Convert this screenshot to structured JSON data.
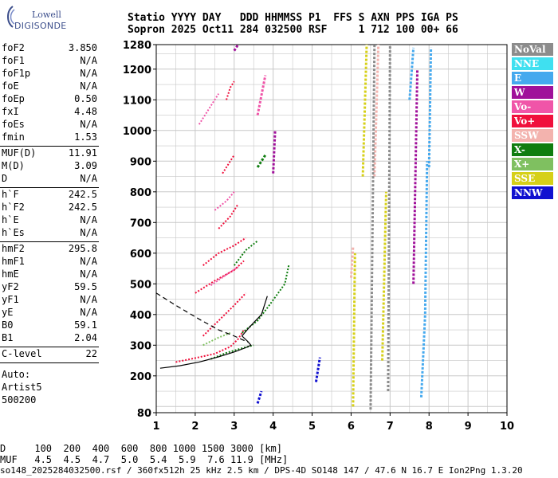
{
  "logo": {
    "line1": "Lowell",
    "line2": "DIGISONDE"
  },
  "header": {
    "line1": "Statio YYYY DAY   DDD HHMMSS P1  FFS S AXN PPS IGA PS",
    "line2": "Sopron 2025 Oct11 284 032500 RSF     1 712 100 00+ 66"
  },
  "params": [
    {
      "group": [
        {
          "label": "foF2",
          "value": "3.850"
        },
        {
          "label": "foF1",
          "value": "N/A"
        },
        {
          "label": "foF1p",
          "value": "N/A"
        },
        {
          "label": "foE",
          "value": "N/A"
        },
        {
          "label": "foEp",
          "value": "0.50"
        },
        {
          "label": "fxI",
          "value": "4.48"
        },
        {
          "label": "foEs",
          "value": "N/A"
        },
        {
          "label": "fmin",
          "value": "1.53"
        }
      ]
    },
    {
      "group": [
        {
          "label": "MUF(D)",
          "value": "11.91"
        },
        {
          "label": "M(D)",
          "value": "3.09"
        },
        {
          "label": "D",
          "value": "N/A"
        }
      ]
    },
    {
      "group": [
        {
          "label": "h`F",
          "value": "242.5"
        },
        {
          "label": "h`F2",
          "value": "242.5"
        },
        {
          "label": "h`E",
          "value": "N/A"
        },
        {
          "label": "h`Es",
          "value": "N/A"
        }
      ]
    },
    {
      "group": [
        {
          "label": "hmF2",
          "value": "295.8"
        },
        {
          "label": "hmF1",
          "value": "N/A"
        },
        {
          "label": "hmE",
          "value": "N/A"
        },
        {
          "label": "yF2",
          "value": "59.5"
        },
        {
          "label": "yF1",
          "value": "N/A"
        },
        {
          "label": "yE",
          "value": "N/A"
        },
        {
          "label": "B0",
          "value": "59.1"
        },
        {
          "label": "B1",
          "value": "2.04"
        }
      ]
    },
    {
      "group": [
        {
          "label": "C-level",
          "value": "22"
        }
      ]
    }
  ],
  "status": [
    "Auto:",
    "Artist5",
    "500200"
  ],
  "legend": [
    {
      "label": "NoVal",
      "color": "#8c8c8c"
    },
    {
      "label": "NNE",
      "color": "#3fe0f0"
    },
    {
      "label": "E",
      "color": "#45a9ee"
    },
    {
      "label": "W",
      "color": "#a0109a"
    },
    {
      "label": "Vo-",
      "color": "#f055a8"
    },
    {
      "label": "Vo+",
      "color": "#f0103c"
    },
    {
      "label": "SSW",
      "color": "#f3b3ae"
    },
    {
      "label": "X-",
      "color": "#0f7d0f"
    },
    {
      "label": "X+",
      "color": "#7fc060"
    },
    {
      "label": "SSE",
      "color": "#d6d018"
    },
    {
      "label": "NNW",
      "color": "#1010d0"
    }
  ],
  "mufTable": {
    "row1": "D     100  200  400  600  800 1000 1500 3000 [km]",
    "row2": "MUF   4.5  4.5  4.7  5.0  5.4  5.9  7.6 11.9 [MHz]"
  },
  "footer": "so148_2025284032500.rsf / 360fx512h 25 kHz 2.5 km / DPS-4D SO148 147 / 47.6 N 16.7 E Ion2Png 1.3.20",
  "chart_data": {
    "type": "scatter",
    "xlim": [
      1,
      10
    ],
    "ylim": [
      80,
      1280
    ],
    "xticks": [
      1,
      2,
      3,
      4,
      5,
      6,
      7,
      8,
      9,
      10
    ],
    "yticks": [
      80,
      200,
      300,
      400,
      500,
      600,
      700,
      800,
      900,
      1000,
      1100,
      1200,
      1280
    ],
    "grid": true,
    "series": [
      {
        "mode": "Vo+",
        "segments": [
          [
            [
              1.5,
              245
            ],
            [
              2.0,
              258
            ],
            [
              2.5,
              272
            ],
            [
              2.9,
              295
            ],
            [
              3.1,
              320
            ],
            [
              3.25,
              350
            ]
          ],
          [
            [
              2.2,
              330
            ],
            [
              2.6,
              380
            ],
            [
              3.0,
              430
            ],
            [
              3.3,
              470
            ]
          ],
          [
            [
              2.0,
              470
            ],
            [
              2.5,
              510
            ],
            [
              3.0,
              545
            ],
            [
              3.25,
              575
            ]
          ],
          [
            [
              2.2,
              560
            ],
            [
              2.6,
              600
            ],
            [
              3.0,
              625
            ],
            [
              3.3,
              650
            ]
          ],
          [
            [
              2.6,
              680
            ],
            [
              2.9,
              720
            ],
            [
              3.1,
              760
            ]
          ],
          [
            [
              2.7,
              860
            ],
            [
              2.9,
              900
            ],
            [
              3.0,
              920
            ]
          ],
          [
            [
              2.8,
              1100
            ],
            [
              2.9,
              1140
            ],
            [
              3.0,
              1160
            ]
          ]
        ]
      },
      {
        "mode": "Vo-",
        "segments": [
          [
            [
              2.4,
              495
            ],
            [
              2.8,
              530
            ],
            [
              3.1,
              555
            ]
          ],
          [
            [
              2.5,
              740
            ],
            [
              2.8,
              770
            ],
            [
              3.0,
              800
            ]
          ],
          [
            [
              2.1,
              1020
            ],
            [
              2.4,
              1080
            ],
            [
              2.6,
              1120
            ]
          ],
          [
            [
              3.6,
              1050
            ],
            [
              3.8,
              1180
            ]
          ]
        ]
      },
      {
        "mode": "X-",
        "segments": [
          [
            [
              2.4,
              255
            ],
            [
              2.8,
              275
            ],
            [
              3.2,
              290
            ],
            [
              3.5,
              300
            ]
          ],
          [
            [
              3.0,
              560
            ],
            [
              3.3,
              610
            ],
            [
              3.6,
              640
            ]
          ],
          [
            [
              3.2,
              340
            ],
            [
              3.6,
              380
            ],
            [
              3.9,
              430
            ],
            [
              4.3,
              500
            ],
            [
              4.4,
              560
            ]
          ],
          [
            [
              3.6,
              880
            ],
            [
              3.8,
              920
            ]
          ]
        ]
      },
      {
        "mode": "X+",
        "segments": [
          [
            [
              2.2,
              300
            ],
            [
              2.6,
              325
            ],
            [
              2.9,
              340
            ]
          ]
        ]
      },
      {
        "mode": "E",
        "segments": [
          [
            [
              7.8,
              130
            ],
            [
              7.9,
              400
            ],
            [
              7.95,
              900
            ]
          ],
          [
            [
              8.0,
              880
            ],
            [
              8.05,
              1270
            ]
          ],
          [
            [
              7.5,
              1100
            ],
            [
              7.6,
              1270
            ]
          ]
        ]
      },
      {
        "mode": "W",
        "segments": [
          [
            [
              7.6,
              500
            ],
            [
              7.7,
              1200
            ]
          ],
          [
            [
              4.0,
              860
            ],
            [
              4.05,
              1000
            ]
          ],
          [
            [
              3.0,
              1260
            ],
            [
              3.1,
              1280
            ]
          ]
        ]
      },
      {
        "mode": "NNW",
        "segments": [
          [
            [
              5.1,
              180
            ],
            [
              5.2,
              260
            ]
          ],
          [
            [
              3.6,
              110
            ],
            [
              3.7,
              150
            ]
          ]
        ]
      },
      {
        "mode": "SSE",
        "segments": [
          [
            [
              6.3,
              850
            ],
            [
              6.4,
              1280
            ]
          ],
          [
            [
              6.8,
              250
            ],
            [
              6.9,
              800
            ]
          ],
          [
            [
              6.05,
              100
            ],
            [
              6.1,
              600
            ]
          ]
        ]
      },
      {
        "mode": "SSW",
        "segments": [
          [
            [
              6.6,
              850
            ],
            [
              6.7,
              1280
            ]
          ],
          [
            [
              6.0,
              520
            ],
            [
              6.05,
              620
            ]
          ]
        ]
      },
      {
        "mode": "NoVal",
        "segments": [
          [
            [
              6.5,
              90
            ],
            [
              6.6,
              1280
            ]
          ],
          [
            [
              6.95,
              150
            ],
            [
              7.0,
              1280
            ]
          ]
        ]
      }
    ],
    "model_profile": [
      [
        1.1,
        225
      ],
      [
        1.6,
        233
      ],
      [
        2.1,
        245
      ],
      [
        2.6,
        262
      ],
      [
        3.0,
        278
      ],
      [
        3.3,
        292
      ],
      [
        3.43,
        300
      ],
      [
        3.35,
        312
      ],
      [
        3.2,
        330
      ],
      [
        3.4,
        360
      ],
      [
        3.7,
        400
      ],
      [
        3.85,
        460
      ]
    ],
    "x_mode_trace": [
      [
        1.0,
        470
      ],
      [
        1.5,
        430
      ],
      [
        2.1,
        385
      ],
      [
        2.6,
        350
      ],
      [
        3.0,
        330
      ],
      [
        3.35,
        310
      ]
    ]
  }
}
